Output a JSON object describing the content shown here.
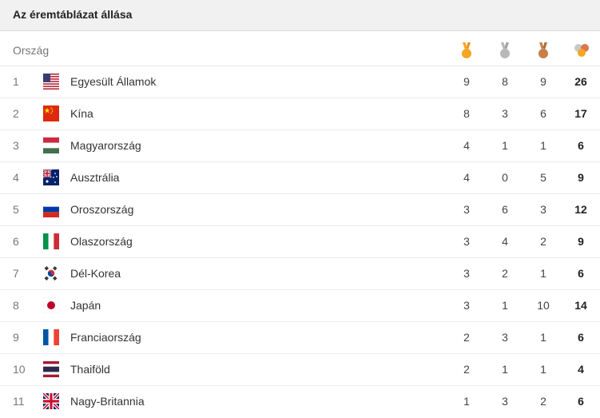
{
  "title": "Az éremtáblázat állása",
  "header": {
    "country_label": "Ország",
    "icons": [
      "gold-medal-icon",
      "silver-medal-icon",
      "bronze-medal-icon",
      "total-medals-icon"
    ]
  },
  "colors": {
    "gold": "#f5a623",
    "silver": "#b8b8b8",
    "bronze": "#c87f4a"
  },
  "rows": [
    {
      "rank": "1",
      "country": "Egyesült Államok",
      "flag": "usa-flag-icon",
      "gold": "9",
      "silver": "8",
      "bronze": "9",
      "total": "26"
    },
    {
      "rank": "2",
      "country": "Kína",
      "flag": "china-flag-icon",
      "gold": "8",
      "silver": "3",
      "bronze": "6",
      "total": "17"
    },
    {
      "rank": "3",
      "country": "Magyarország",
      "flag": "hungary-flag-icon",
      "gold": "4",
      "silver": "1",
      "bronze": "1",
      "total": "6"
    },
    {
      "rank": "4",
      "country": "Ausztrália",
      "flag": "australia-flag-icon",
      "gold": "4",
      "silver": "0",
      "bronze": "5",
      "total": "9"
    },
    {
      "rank": "5",
      "country": "Oroszország",
      "flag": "russia-flag-icon",
      "gold": "3",
      "silver": "6",
      "bronze": "3",
      "total": "12"
    },
    {
      "rank": "6",
      "country": "Olaszország",
      "flag": "italy-flag-icon",
      "gold": "3",
      "silver": "4",
      "bronze": "2",
      "total": "9"
    },
    {
      "rank": "7",
      "country": "Dél-Korea",
      "flag": "south-korea-flag-icon",
      "gold": "3",
      "silver": "2",
      "bronze": "1",
      "total": "6"
    },
    {
      "rank": "8",
      "country": "Japán",
      "flag": "japan-flag-icon",
      "gold": "3",
      "silver": "1",
      "bronze": "10",
      "total": "14"
    },
    {
      "rank": "9",
      "country": "Franciaország",
      "flag": "france-flag-icon",
      "gold": "2",
      "silver": "3",
      "bronze": "1",
      "total": "6"
    },
    {
      "rank": "10",
      "country": "Thaiföld",
      "flag": "thailand-flag-icon",
      "gold": "2",
      "silver": "1",
      "bronze": "1",
      "total": "4"
    },
    {
      "rank": "11",
      "country": "Nagy-Britannia",
      "flag": "uk-flag-icon",
      "gold": "1",
      "silver": "3",
      "bronze": "2",
      "total": "6"
    }
  ]
}
